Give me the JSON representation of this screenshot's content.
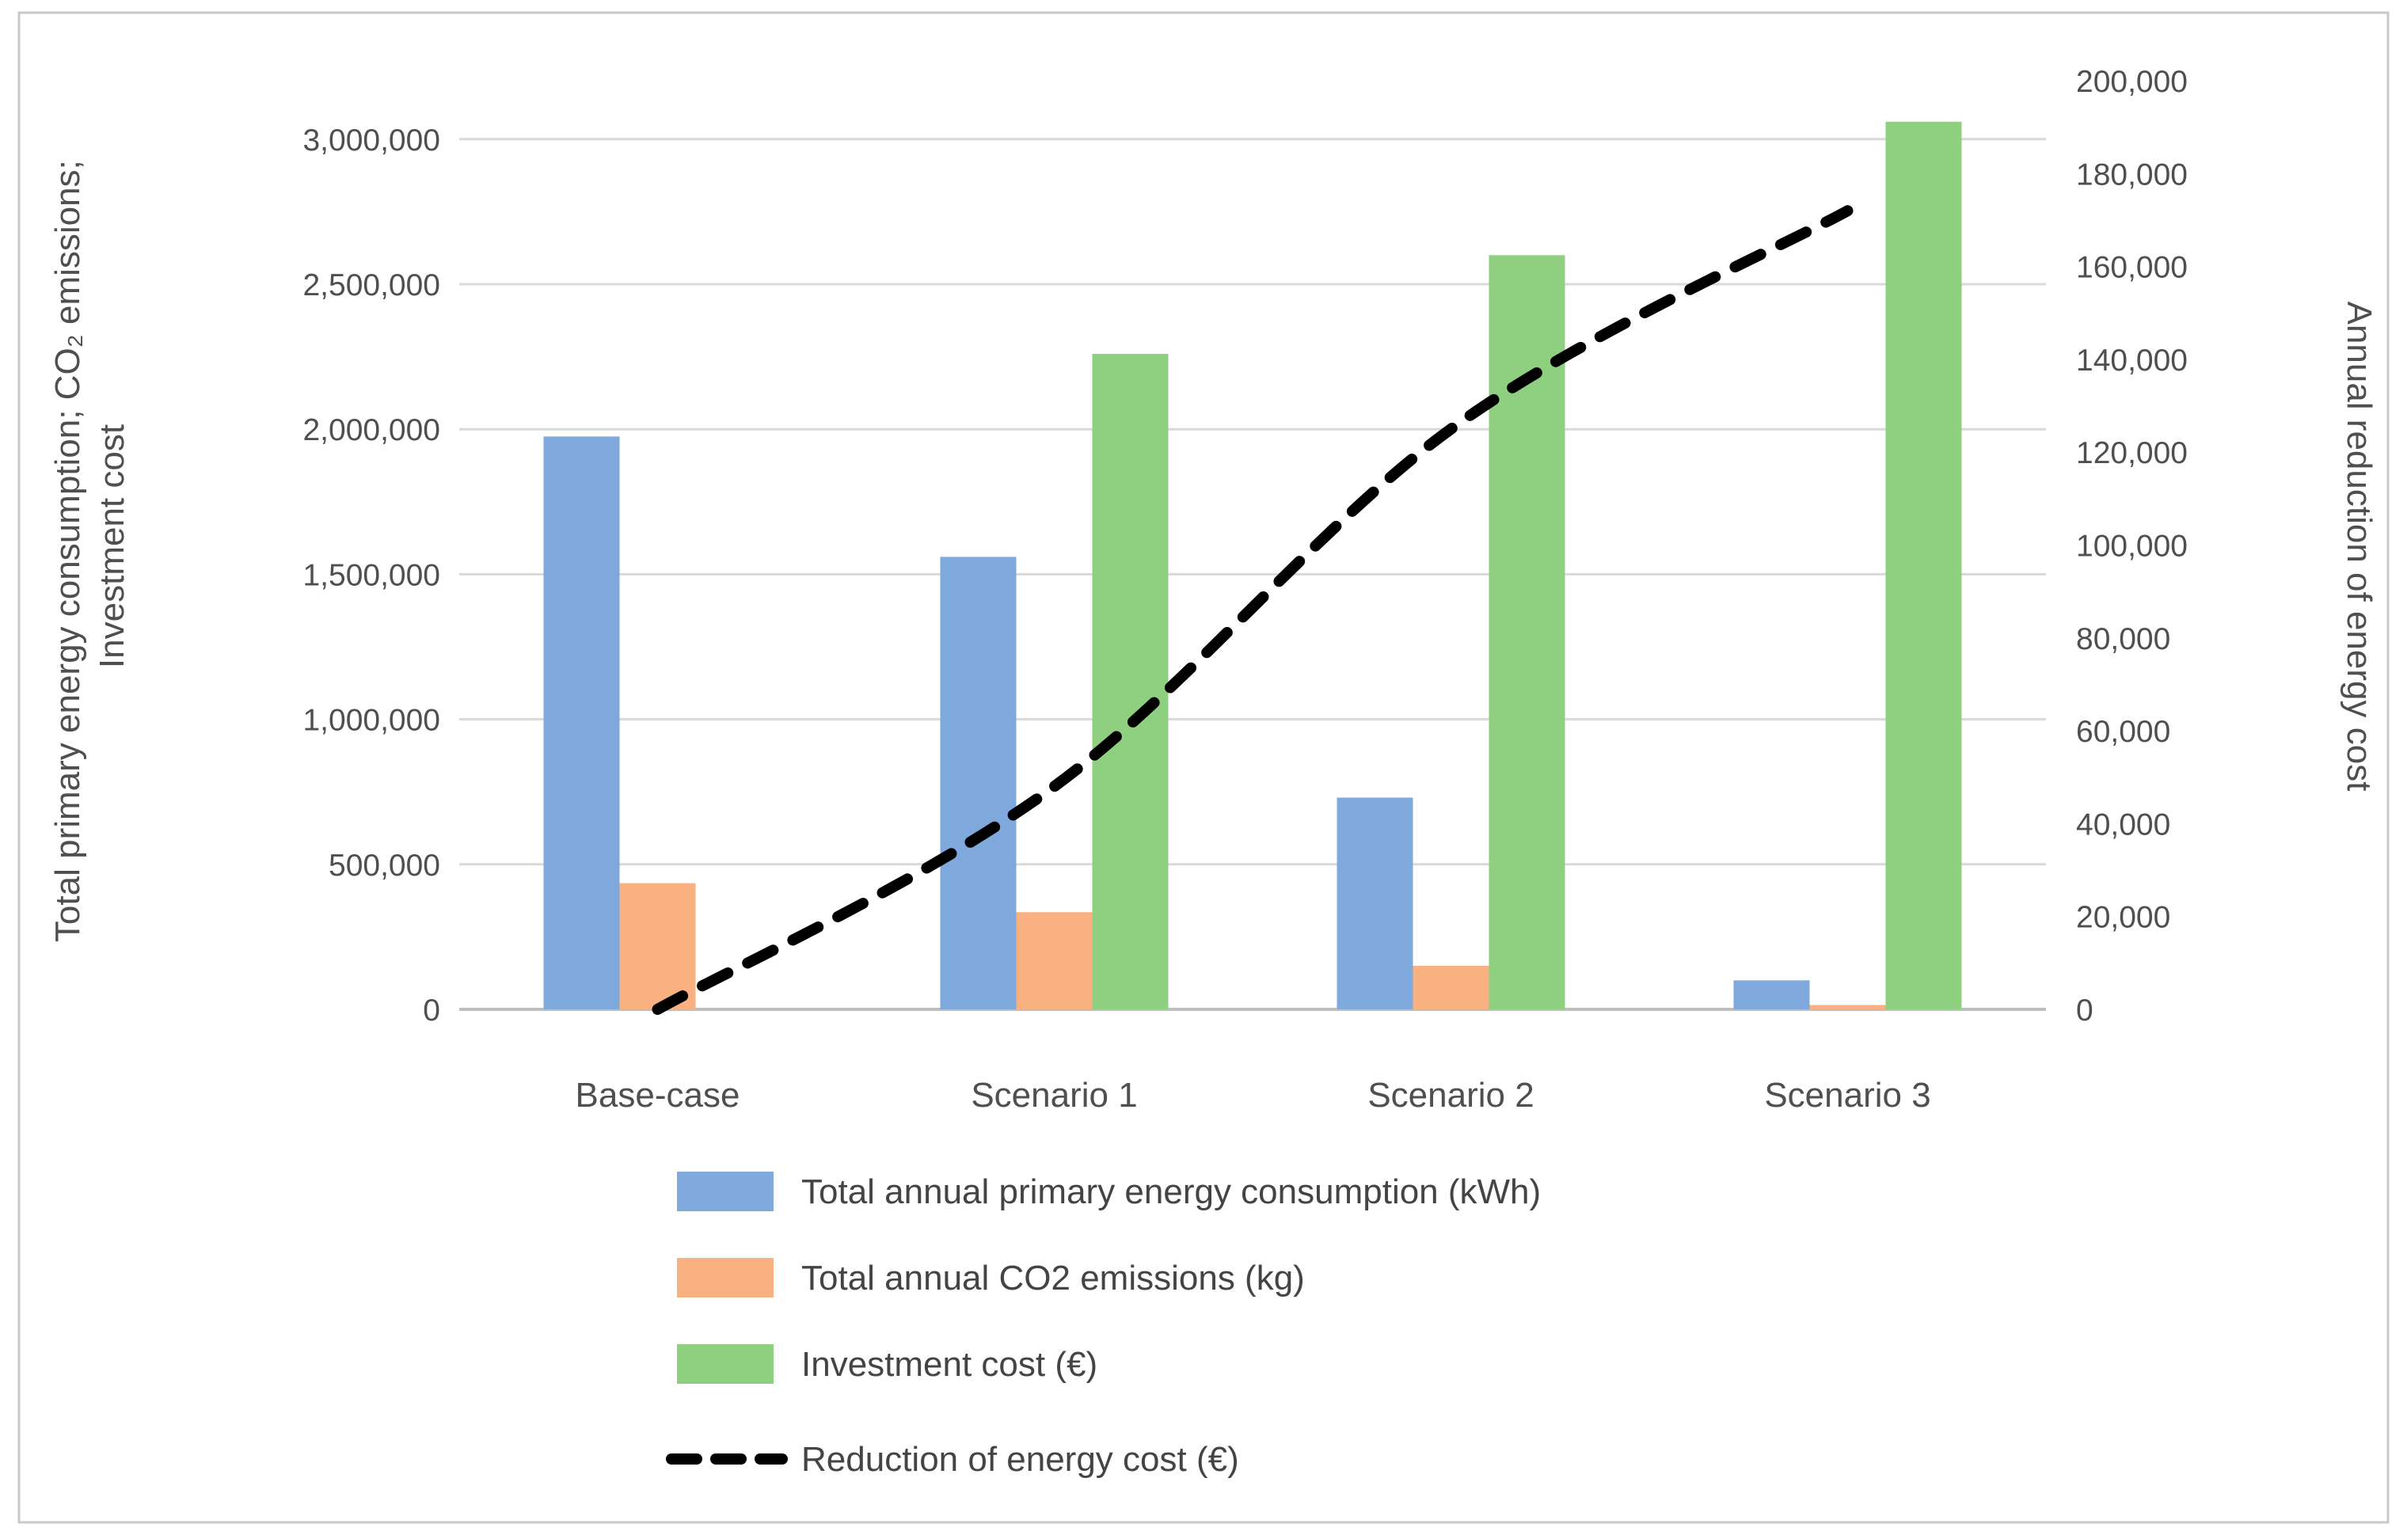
{
  "chart_data": {
    "type": "bar",
    "subtype": "combo-bar-line-dual-axis",
    "categories": [
      "Base-case",
      "Scenario 1",
      "Scenario 2",
      "Scenario 3"
    ],
    "series": [
      {
        "name": "Total annual primary energy consumption (kWh)",
        "kind": "bar",
        "axis": "primary",
        "color": "#7FA8DC",
        "values": [
          1975000,
          1560000,
          730000,
          100000
        ]
      },
      {
        "name": "Total annual  CO2 emissions (kg)",
        "kind": "bar",
        "axis": "primary",
        "color": "#F9B181",
        "values": [
          435000,
          335000,
          150000,
          15000
        ]
      },
      {
        "name": "Investment cost (€)",
        "kind": "bar",
        "axis": "primary",
        "color": "#8FCF80",
        "values": [
          null,
          2260000,
          2600000,
          3060000
        ]
      },
      {
        "name": "Reduction of energy cost (€)",
        "kind": "line",
        "axis": "secondary",
        "color": "#000000",
        "dashed": true,
        "values": [
          0,
          48000,
          125000,
          172000
        ]
      }
    ],
    "left_axis": {
      "title_line1": "Total primary energy consumption; CO₂ emissions;",
      "title_line2": "Investment cost",
      "min": 0,
      "max": 3200000,
      "major_unit": 500000,
      "tick_labels": [
        "0",
        "500,000",
        "1,000,000",
        "1,500,000",
        "2,000,000",
        "2,500,000",
        "3,000,000"
      ],
      "tick_values": [
        0,
        500000,
        1000000,
        1500000,
        2000000,
        2500000,
        3000000
      ]
    },
    "right_axis": {
      "title": "Annual reduction of energy cost",
      "min": 0,
      "max": 200000,
      "major_unit": 20000,
      "tick_labels": [
        "0",
        "20,000",
        "40,000",
        "60,000",
        "80,000",
        "100,000",
        "120,000",
        "140,000",
        "160,000",
        "180,000",
        "200,000"
      ],
      "tick_values": [
        0,
        20000,
        40000,
        60000,
        80000,
        100000,
        120000,
        140000,
        160000,
        180000,
        200000
      ]
    },
    "legend": [
      {
        "label": "Total annual primary energy consumption (kWh)",
        "swatch": "blue-bar-swatch",
        "color": "#7FA8DC"
      },
      {
        "label": "Total annual  CO2 emissions (kg)",
        "swatch": "orange-bar-swatch",
        "color": "#F9B181"
      },
      {
        "label": "Investment cost (€)",
        "swatch": "green-bar-swatch",
        "color": "#8FCF80"
      },
      {
        "label": "Reduction of energy cost (€)",
        "swatch": "black-dashed-line-swatch",
        "color": "#000000"
      }
    ],
    "grid": {
      "show_horizontal": true,
      "color": "#D9D9D9",
      "axis_line_color": "#BFBFBF"
    },
    "layout": {
      "legend_position": "bottom-left",
      "plot_background": "#FFFFFF",
      "chart_border_color": "#C9C9C9"
    }
  }
}
